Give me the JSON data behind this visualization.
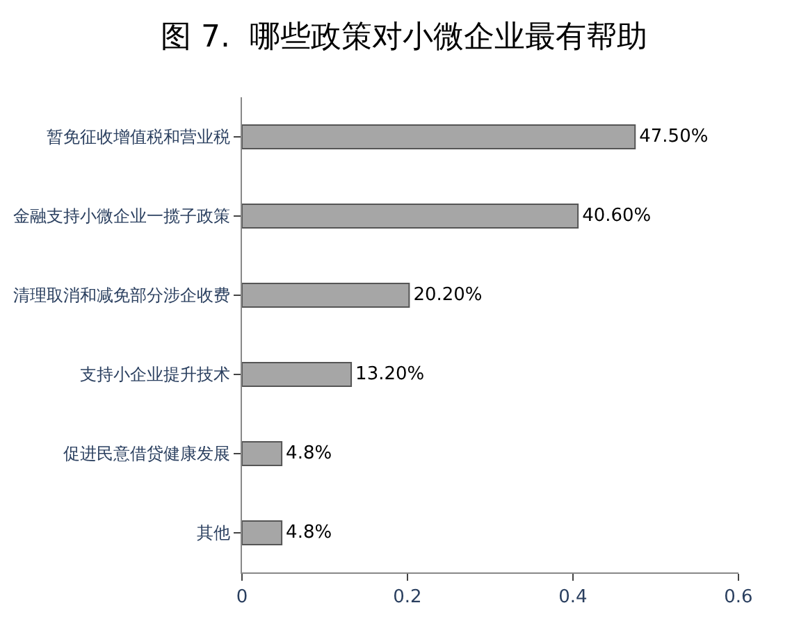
{
  "chart_data": {
    "type": "bar",
    "orientation": "horizontal",
    "title": "图 7.  哪些政策对小微企业最有帮助",
    "categories": [
      "暂免征收增值税和营业税",
      "金融支持小微企业一揽子政策",
      "清理取消和减免部分涉企收费",
      "支持小企业提升技术",
      "促进民意借贷健康发展",
      "其他"
    ],
    "values": [
      0.475,
      0.406,
      0.202,
      0.132,
      0.048,
      0.048
    ],
    "value_labels": [
      "47.50%",
      "40.60%",
      "20.20%",
      "13.20%",
      "4.8%",
      "4.8%"
    ],
    "color": "#a6a6a6",
    "xlim": [
      0,
      0.6
    ],
    "xticks": [
      0,
      0.2,
      0.4,
      0.6
    ],
    "grid": false,
    "legend": false
  }
}
